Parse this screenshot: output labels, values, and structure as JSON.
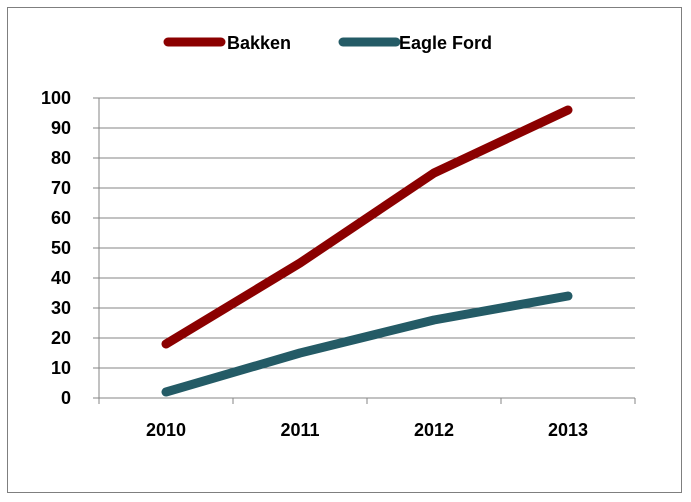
{
  "chart_data": {
    "type": "line",
    "categories": [
      "2010",
      "2011",
      "2012",
      "2013"
    ],
    "series": [
      {
        "name": "Bakken",
        "color": "#8b0000",
        "values": [
          18,
          45,
          75,
          96
        ]
      },
      {
        "name": "Eagle Ford",
        "color": "#245b66",
        "values": [
          2,
          15,
          26,
          34
        ]
      }
    ],
    "yticks": [
      "0",
      "10",
      "20",
      "30",
      "40",
      "50",
      "60",
      "70",
      "80",
      "90",
      "100"
    ],
    "ylim": [
      0,
      100
    ],
    "grid": true,
    "legend_position": "top"
  }
}
